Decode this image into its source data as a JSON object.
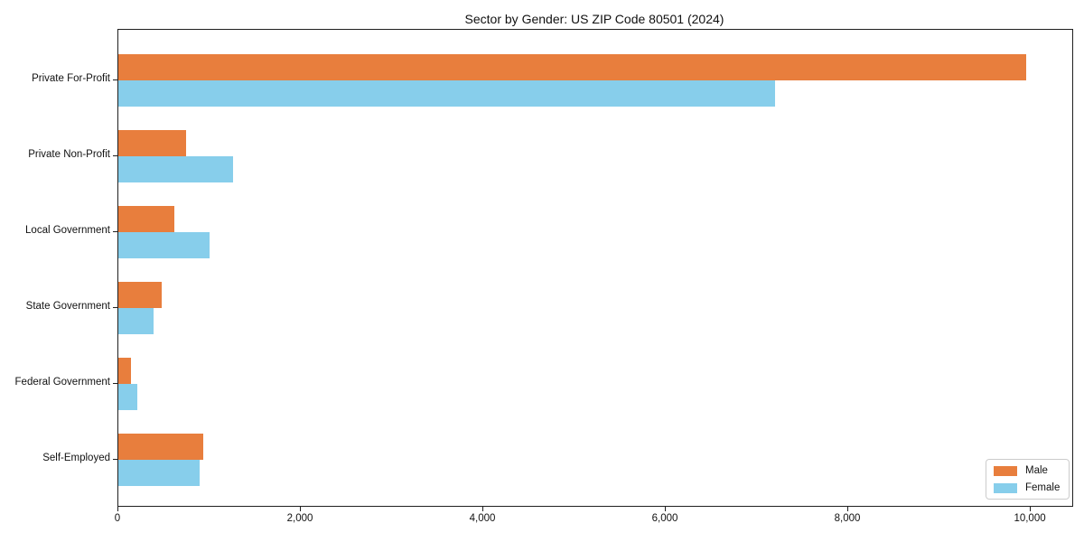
{
  "chart_data": {
    "type": "bar",
    "orientation": "horizontal",
    "title": "Sector by Gender: US ZIP Code 80501 (2024)",
    "xlabel": "",
    "ylabel": "",
    "categories": [
      "Private For-Profit",
      "Private Non-Profit",
      "Local Government",
      "State Government",
      "Federal Government",
      "Self-Employed"
    ],
    "series": [
      {
        "name": "Male",
        "color": "#e87e3d",
        "values": [
          9950,
          740,
          610,
          480,
          140,
          930
        ]
      },
      {
        "name": "Female",
        "color": "#87ceeb",
        "values": [
          7200,
          1260,
          1000,
          390,
          210,
          890
        ]
      }
    ],
    "xlim": [
      0,
      10455
    ],
    "x_ticks": [
      0,
      2000,
      4000,
      6000,
      8000,
      10000
    ],
    "x_tick_labels": [
      "0",
      "2,000",
      "4,000",
      "6,000",
      "8,000",
      "10,000"
    ],
    "grid": false,
    "legend_position": "lower right",
    "axis_color": "#1f1f1f",
    "legend_border_color": "#cccccc"
  }
}
